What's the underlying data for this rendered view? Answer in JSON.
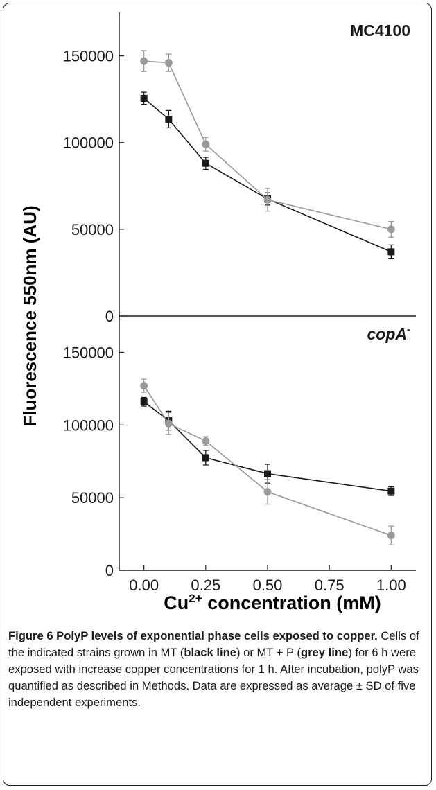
{
  "chart_data": [
    {
      "type": "line",
      "panel_label": "MC4100",
      "ylim": [
        0,
        175000
      ],
      "yticks": [
        0,
        50000,
        100000,
        150000
      ],
      "ytick_labels": [
        "0",
        "50000",
        "100000",
        "150000"
      ],
      "xlim": [
        -0.1,
        1.1
      ],
      "series": [
        {
          "color": "#1a1a1a",
          "marker": "square",
          "x": [
            0,
            0.1,
            0.25,
            0.5,
            1.0
          ],
          "values": [
            125500,
            113500,
            88000,
            67500,
            37000
          ],
          "errors": [
            3500,
            5000,
            3500,
            3500,
            4000
          ]
        },
        {
          "color": "#999999",
          "marker": "circle",
          "x": [
            0,
            0.1,
            0.25,
            0.5,
            1.0
          ],
          "values": [
            147000,
            146000,
            99000,
            67000,
            50000
          ],
          "errors": [
            6000,
            5000,
            4000,
            6500,
            4500
          ]
        }
      ]
    },
    {
      "type": "line",
      "panel_label": "copA",
      "panel_label_sup": "-",
      "ylim": [
        0,
        175000
      ],
      "yticks": [
        0,
        50000,
        100000,
        150000
      ],
      "ytick_labels": [
        "0",
        "50000",
        "100000",
        "150000"
      ],
      "xlim": [
        -0.1,
        1.1
      ],
      "xticks": [
        0,
        0.25,
        0.5,
        0.75,
        1.0
      ],
      "xtick_labels": [
        "0.00",
        "0.25",
        "0.50",
        "0.75",
        "1.00"
      ],
      "series": [
        {
          "color": "#1a1a1a",
          "marker": "square",
          "x": [
            0,
            0.1,
            0.25,
            0.5,
            1.0
          ],
          "values": [
            116000,
            103000,
            77500,
            66500,
            54500
          ],
          "errors": [
            3000,
            6500,
            5000,
            6500,
            3000
          ]
        },
        {
          "color": "#999999",
          "marker": "circle",
          "x": [
            0,
            0.1,
            0.25,
            0.5,
            1.0
          ],
          "values": [
            127000,
            101000,
            89000,
            54000,
            24000
          ],
          "errors": [
            4500,
            7500,
            3000,
            8500,
            6500
          ]
        }
      ]
    }
  ],
  "ylabel": "Fluorescence 550nm (AU)",
  "xlabel_main": "Cu",
  "xlabel_sup": "2+",
  "xlabel_rest": " concentration (mM)",
  "caption": {
    "fig_label": "Figure 6",
    "title": " PolyP levels of exponential phase cells exposed to copper.",
    "text_1": " Cells of the indicated strains grown in MT (",
    "black_line": "black line",
    "text_2": ") or MT + P (",
    "grey_line": "grey line",
    "text_3": ") for 6 h were exposed with increase copper concentrations for 1 h. After incubation, polyP was quantified as described in Methods. Data are expressed as average ± SD of five independent experiments."
  }
}
